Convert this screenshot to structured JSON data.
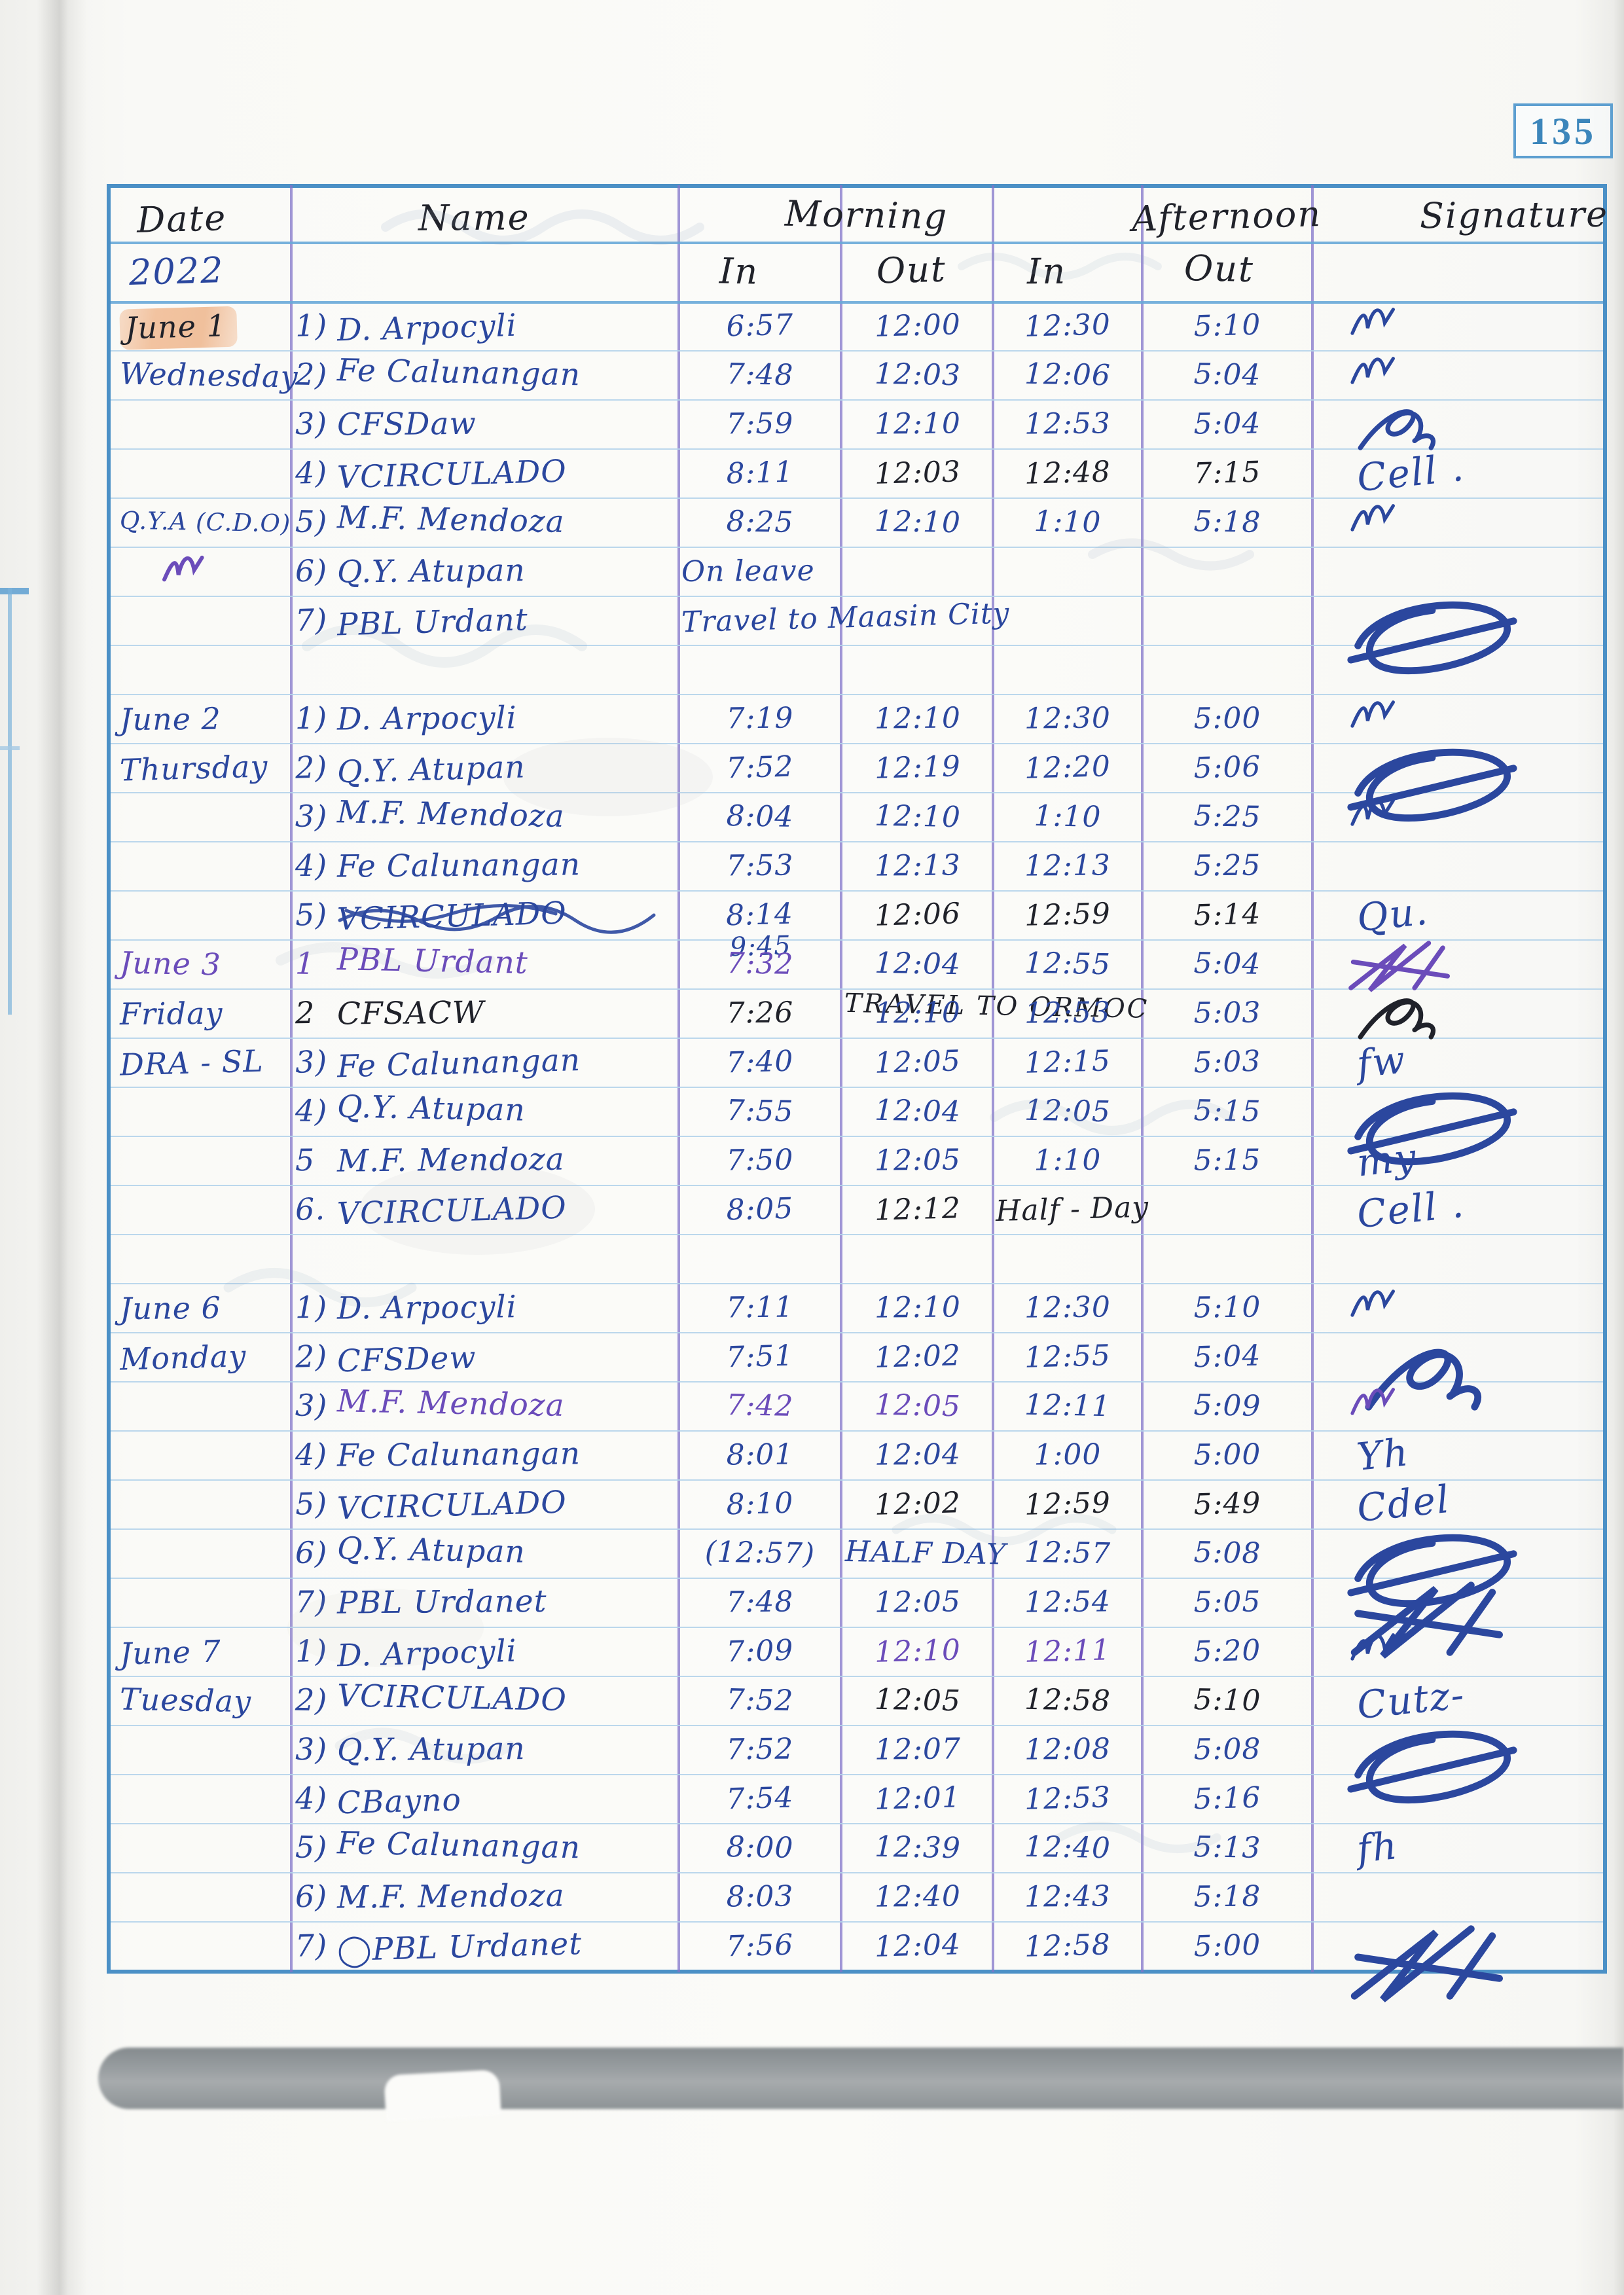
{
  "page": {
    "number": "135"
  },
  "header": {
    "date": "Date",
    "name": "Name",
    "morning": "Morning",
    "afternoon": "Afternoon",
    "signature": "Signature",
    "in1": "In",
    "out1": "Out",
    "in2": "In",
    "out2": "Out",
    "year": "2022"
  },
  "colors": {
    "ink_blue": "#2b479e",
    "ink_black": "#20222a",
    "ink_purple": "#6b4cba",
    "highlight_peach": "#f2c3a0",
    "table_border_blue": "#4b90c6",
    "column_line_purple": "#8174c9",
    "ruling_blue": "#b4d3ea",
    "page_number_blue": "#3c86bb"
  },
  "rows": [
    {
      "date": {
        "t": "June 1",
        "ink": "black",
        "hl": true
      },
      "no": "1)",
      "name": "D. Arpocyli",
      "min": {
        "t": "6:57"
      },
      "mout": {
        "t": "12:00"
      },
      "ain": {
        "t": "12:30"
      },
      "aout": {
        "t": "5:10"
      },
      "sig": {
        "kind": "scribble",
        "variant": "check",
        "size": "s"
      }
    },
    {
      "date": {
        "t": "Wednesday"
      },
      "no": "2)",
      "name": "Fe Calunangan",
      "min": {
        "t": "7:48"
      },
      "mout": {
        "t": "12:03"
      },
      "ain": {
        "t": "12:06"
      },
      "aout": {
        "t": "5:04"
      },
      "sig": {
        "kind": "scribble",
        "variant": "check",
        "size": "s"
      }
    },
    {
      "no": "3)",
      "name": "CFSDaw",
      "min": {
        "t": "7:59"
      },
      "mout": {
        "t": "12:10"
      },
      "ain": {
        "t": "12:53"
      },
      "aout": {
        "t": "5:04"
      },
      "sig": {
        "kind": "scribble",
        "variant": "loop",
        "size": "m"
      }
    },
    {
      "no": "4)",
      "name": "VCIRCULADO",
      "min": {
        "t": "8:11"
      },
      "mout": {
        "t": "12:03",
        "ink": "black"
      },
      "ain": {
        "t": "12:48",
        "ink": "black"
      },
      "aout": {
        "t": "7:15",
        "ink": "black"
      },
      "sig": {
        "kind": "text",
        "t": "Cell ."
      }
    },
    {
      "date": {
        "t": "Q.Y.A (C.D.O)",
        "size": "sm"
      },
      "no": "5)",
      "name": "M.F. Mendoza",
      "min": {
        "t": "8:25"
      },
      "mout": {
        "t": "12:10"
      },
      "ain": {
        "t": "1:10"
      },
      "aout": {
        "t": "5:18"
      },
      "sig": {
        "kind": "scribble",
        "variant": "check",
        "size": "s"
      }
    },
    {
      "date": {
        "scribble": true
      },
      "no": "6)",
      "name": "Q.Y. Atupan",
      "min": {
        "t": "On leave",
        "wide": true
      }
    },
    {
      "no": "7)",
      "name": "PBL Urdant",
      "min": {
        "t": "Travel to Maasin City",
        "wide": true
      },
      "sig": {
        "kind": "scribble",
        "variant": "flourish",
        "size": "l"
      }
    },
    {
      "blank": true
    },
    {
      "date": {
        "t": "June 2"
      },
      "no": "1)",
      "name": "D. Arpocyli",
      "min": {
        "t": "7:19"
      },
      "mout": {
        "t": "12:10"
      },
      "ain": {
        "t": "12:30"
      },
      "aout": {
        "t": "5:00"
      },
      "sig": {
        "kind": "scribble",
        "variant": "check",
        "size": "s"
      }
    },
    {
      "date": {
        "t": "Thursday"
      },
      "no": "2)",
      "name": "Q.Y. Atupan",
      "min": {
        "t": "7:52"
      },
      "mout": {
        "t": "12:19"
      },
      "ain": {
        "t": "12:20"
      },
      "aout": {
        "t": "5:06"
      },
      "sig": {
        "kind": "scribble",
        "variant": "flourish",
        "size": "l"
      }
    },
    {
      "no": "3)",
      "name": "M.F. Mendoza",
      "min": {
        "t": "8:04"
      },
      "mout": {
        "t": "12:10"
      },
      "ain": {
        "t": "1:10"
      },
      "aout": {
        "t": "5:25"
      },
      "sig": {
        "kind": "scribble",
        "variant": "check",
        "size": "s"
      }
    },
    {
      "no": "4)",
      "name": "Fe Calunangan",
      "min": {
        "t": "7:53"
      },
      "mout": {
        "t": "12:13"
      },
      "ain": {
        "t": "12:13"
      },
      "aout": {
        "t": "5:25"
      }
    },
    {
      "no": "5)",
      "name": "VCIRCULADO",
      "name_scrawled": true,
      "min": {
        "t": "8:14",
        "t2": "9:45"
      },
      "mout": {
        "t": "12:06",
        "ink": "black"
      },
      "ain": {
        "t": "12:59",
        "ink": "black"
      },
      "aout": {
        "t": "5:14",
        "ink": "black"
      },
      "sig": {
        "kind": "text",
        "t": "Qu."
      }
    },
    {
      "date": {
        "t": "June 3",
        "ink": "purple"
      },
      "no": "1",
      "no_ink": "purple",
      "name": "PBL Urdant",
      "name_ink": "purple",
      "min": {
        "t": "7:32",
        "ink": "purple"
      },
      "mout": {
        "t": "12:04",
        "note": "TRAVEL TO ORMOC",
        "note_ink": "black"
      },
      "ain": {
        "t": "12:55"
      },
      "aout": {
        "t": "5:04"
      },
      "sig": {
        "kind": "scribble",
        "variant": "star",
        "size": "m",
        "ink": "purple"
      }
    },
    {
      "date": {
        "t": "Friday"
      },
      "no": "2",
      "no_ink": "black",
      "name": "CFSACW",
      "name_ink": "black",
      "min": {
        "t": "7:26",
        "ink": "black"
      },
      "mout": {
        "t": "12:10"
      },
      "ain": {
        "t": "12:53"
      },
      "aout": {
        "t": "5:03"
      },
      "sig": {
        "kind": "scribble",
        "variant": "loop",
        "size": "m",
        "ink": "black"
      }
    },
    {
      "date": {
        "t": "DRA - SL"
      },
      "no": "3)",
      "name": "Fe Calunangan",
      "min": {
        "t": "7:40"
      },
      "mout": {
        "t": "12:05"
      },
      "ain": {
        "t": "12:15"
      },
      "aout": {
        "t": "5:03"
      },
      "sig": {
        "kind": "text",
        "t": "fw"
      }
    },
    {
      "no": "4)",
      "name": "Q.Y. Atupan",
      "min": {
        "t": "7:55"
      },
      "mout": {
        "t": "12:04"
      },
      "ain": {
        "t": "12:05"
      },
      "aout": {
        "t": "5:15"
      },
      "sig": {
        "kind": "scribble",
        "variant": "flourish",
        "size": "l"
      }
    },
    {
      "no": "5",
      "name": "M.F. Mendoza",
      "min": {
        "t": "7:50"
      },
      "mout": {
        "t": "12:05"
      },
      "ain": {
        "t": "1:10"
      },
      "aout": {
        "t": "5:15"
      },
      "sig": {
        "kind": "text",
        "t": "my"
      }
    },
    {
      "no": "6.",
      "name": "VCIRCULADO",
      "min": {
        "t": "8:05"
      },
      "mout": {
        "t": "12:12",
        "ink": "black"
      },
      "ain": {
        "t": "Half - Day",
        "ink": "black",
        "wide": true
      },
      "sig": {
        "kind": "text",
        "t": "Cell ."
      }
    },
    {
      "blank": true
    },
    {
      "date": {
        "t": "June 6"
      },
      "no": "1)",
      "name": "D. Arpocyli",
      "min": {
        "t": "7:11"
      },
      "mout": {
        "t": "12:10"
      },
      "ain": {
        "t": "12:30"
      },
      "aout": {
        "t": "5:10"
      },
      "sig": {
        "kind": "scribble",
        "variant": "check",
        "size": "s"
      }
    },
    {
      "date": {
        "t": "Monday"
      },
      "no": "2)",
      "name": "CFSDew",
      "min": {
        "t": "7:51"
      },
      "mout": {
        "t": "12:02"
      },
      "ain": {
        "t": "12:55"
      },
      "aout": {
        "t": "5:04"
      },
      "sig": {
        "kind": "scribble",
        "variant": "loop",
        "size": "l"
      }
    },
    {
      "no": "3)",
      "name": "M.F. Mendoza",
      "name_ink": "purple",
      "min": {
        "t": "7:42",
        "ink": "purple"
      },
      "mout": {
        "t": "12:05",
        "ink": "purple"
      },
      "ain": {
        "t": "12:11"
      },
      "aout": {
        "t": "5:09"
      },
      "sig": {
        "kind": "scribble",
        "variant": "check",
        "size": "s",
        "ink": "purple"
      }
    },
    {
      "no": "4)",
      "name": "Fe Calunangan",
      "min": {
        "t": "8:01"
      },
      "mout": {
        "t": "12:04"
      },
      "ain": {
        "t": "1:00"
      },
      "aout": {
        "t": "5:00"
      },
      "sig": {
        "kind": "text",
        "t": "Yh"
      }
    },
    {
      "no": "5)",
      "name": "VCIRCULADO",
      "min": {
        "t": "8:10"
      },
      "mout": {
        "t": "12:02",
        "ink": "black"
      },
      "ain": {
        "t": "12:59",
        "ink": "black"
      },
      "aout": {
        "t": "5:49",
        "ink": "black"
      },
      "sig": {
        "kind": "text",
        "t": "Cdel"
      }
    },
    {
      "no": "6)",
      "name": "Q.Y. Atupan",
      "min": {
        "t": "(12:57)"
      },
      "mout": {
        "t": "HALF DAY"
      },
      "ain": {
        "t": "12:57"
      },
      "aout": {
        "t": "5:08"
      },
      "sig": {
        "kind": "scribble",
        "variant": "flourish",
        "size": "l"
      }
    },
    {
      "no": "7)",
      "name": "PBL Urdanet",
      "min": {
        "t": "7:48"
      },
      "mout": {
        "t": "12:05"
      },
      "ain": {
        "t": "12:54"
      },
      "aout": {
        "t": "5:05"
      },
      "sig": {
        "kind": "scribble",
        "variant": "star",
        "size": "l"
      }
    },
    {
      "date": {
        "t": "June 7"
      },
      "no": "1)",
      "name": "D. Arpocyli",
      "min": {
        "t": "7:09"
      },
      "mout": {
        "t": "12:10",
        "ink": "purple"
      },
      "ain": {
        "t": "12:11",
        "ink": "purple"
      },
      "aout": {
        "t": "5:20"
      },
      "sig": {
        "kind": "scribble",
        "variant": "check",
        "size": "s"
      }
    },
    {
      "date": {
        "t": "Tuesday"
      },
      "no": "2)",
      "name": "VCIRCULADO",
      "min": {
        "t": "7:52"
      },
      "mout": {
        "t": "12:05",
        "ink": "black"
      },
      "ain": {
        "t": "12:58",
        "ink": "black"
      },
      "aout": {
        "t": "5:10",
        "ink": "black"
      },
      "sig": {
        "kind": "text",
        "t": "Cutz-"
      }
    },
    {
      "no": "3)",
      "name": "Q.Y. Atupan",
      "min": {
        "t": "7:52"
      },
      "mout": {
        "t": "12:07"
      },
      "ain": {
        "t": "12:08"
      },
      "aout": {
        "t": "5:08"
      },
      "sig": {
        "kind": "scribble",
        "variant": "flourish",
        "size": "l"
      }
    },
    {
      "no": "4)",
      "name": "CBayno",
      "min": {
        "t": "7:54"
      },
      "mout": {
        "t": "12:01"
      },
      "ain": {
        "t": "12:53"
      },
      "aout": {
        "t": "5:16"
      }
    },
    {
      "no": "5)",
      "name": "Fe Calunangan",
      "min": {
        "t": "8:00"
      },
      "mout": {
        "t": "12:39"
      },
      "ain": {
        "t": "12:40"
      },
      "aout": {
        "t": "5:13"
      },
      "sig": {
        "kind": "text",
        "t": "fh"
      }
    },
    {
      "no": "6)",
      "name": "M.F. Mendoza",
      "min": {
        "t": "8:03"
      },
      "mout": {
        "t": "12:40"
      },
      "ain": {
        "t": "12:43"
      },
      "aout": {
        "t": "5:18"
      }
    },
    {
      "no": "7)",
      "name": "PBL Urdanet",
      "name_mark": "circle",
      "min": {
        "t": "7:56"
      },
      "mout": {
        "t": "12:04"
      },
      "ain": {
        "t": "12:58"
      },
      "aout": {
        "t": "5:00"
      },
      "sig": {
        "kind": "scribble",
        "variant": "star",
        "size": "l"
      }
    }
  ]
}
